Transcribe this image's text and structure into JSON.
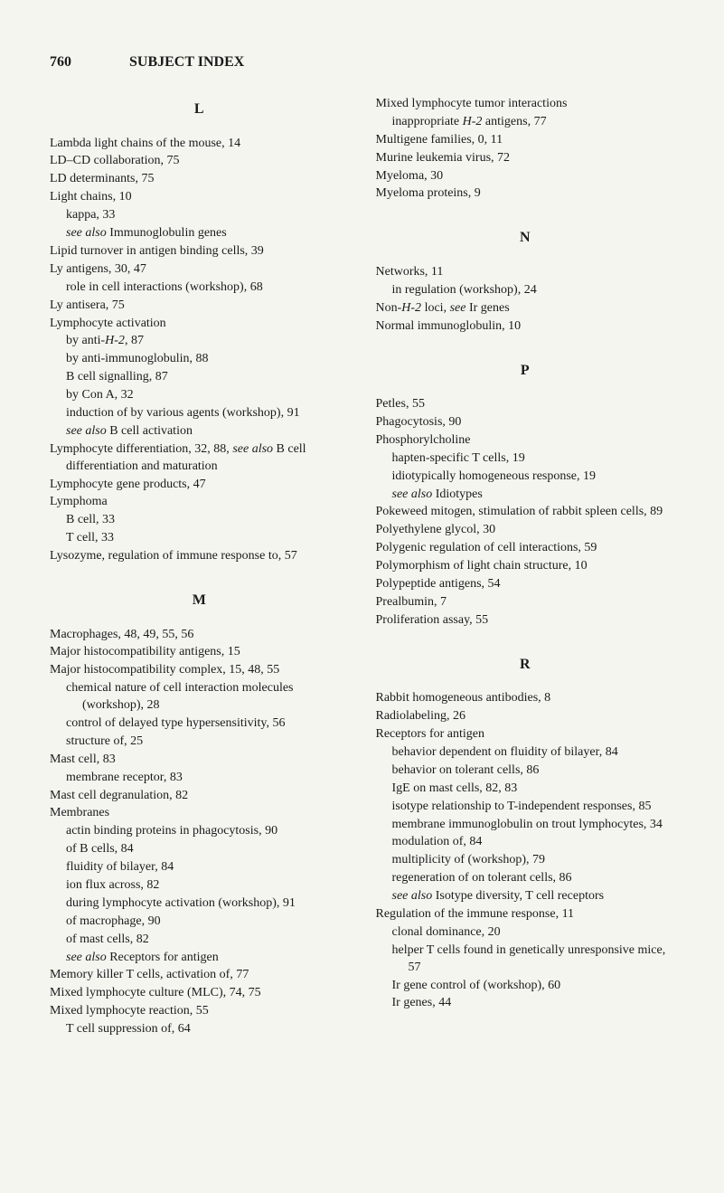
{
  "page_number": "760",
  "header_title": "SUBJECT INDEX",
  "column_left": {
    "sections": [
      {
        "letter": "L",
        "entries": [
          {
            "t": "Lambda light chains of the mouse, 14"
          },
          {
            "t": "LD–CD collaboration, 75"
          },
          {
            "t": "LD determinants, 75"
          },
          {
            "t": "Light chains, 10"
          },
          {
            "t": "kappa, 33",
            "lvl": 1
          },
          {
            "html": "<em>see also</em> Immunoglobulin genes",
            "lvl": 1
          },
          {
            "t": "Lipid turnover in antigen binding cells, 39"
          },
          {
            "t": "Ly antigens, 30, 47"
          },
          {
            "t": "role in cell interactions (workshop), 68",
            "lvl": 1
          },
          {
            "t": "Ly antisera, 75"
          },
          {
            "t": "Lymphocyte activation"
          },
          {
            "html": "by anti-<em>H-2</em>, 87",
            "lvl": 1
          },
          {
            "t": "by anti-immunoglobulin, 88",
            "lvl": 1
          },
          {
            "t": "B cell signalling, 87",
            "lvl": 1
          },
          {
            "t": "by Con A, 32",
            "lvl": 1
          },
          {
            "t": "induction of by various agents (workshop), 91",
            "lvl": 1
          },
          {
            "html": "<em>see also</em> B cell activation",
            "lvl": 1
          },
          {
            "html": "Lymphocyte differentiation, 32, 88, <em>see also</em> B cell differentiation and maturation"
          },
          {
            "t": "Lymphocyte gene products, 47"
          },
          {
            "t": "Lymphoma"
          },
          {
            "t": "B cell, 33",
            "lvl": 1
          },
          {
            "t": "T cell, 33",
            "lvl": 1
          },
          {
            "t": "Lysozyme, regulation of immune response to, 57"
          }
        ]
      },
      {
        "letter": "M",
        "entries": [
          {
            "t": "Macrophages, 48, 49, 55, 56"
          },
          {
            "t": "Major histocompatibility antigens, 15"
          },
          {
            "t": "Major histocompatibility complex, 15, 48, 55"
          },
          {
            "t": "chemical nature of cell interaction molecules (workshop), 28",
            "lvl": 1
          },
          {
            "t": "control of delayed type hypersensitivity, 56",
            "lvl": 1
          },
          {
            "t": "structure of, 25",
            "lvl": 1
          },
          {
            "t": "Mast cell, 83"
          },
          {
            "t": "membrane receptor, 83",
            "lvl": 1
          },
          {
            "t": "Mast cell degranulation, 82"
          },
          {
            "t": "Membranes"
          },
          {
            "t": "actin binding proteins in phagocytosis, 90",
            "lvl": 1
          },
          {
            "t": "of B cells, 84",
            "lvl": 1
          },
          {
            "t": "fluidity of bilayer, 84",
            "lvl": 1
          },
          {
            "t": "ion flux across, 82",
            "lvl": 1
          },
          {
            "t": "during lymphocyte activation (workshop), 91",
            "lvl": 1
          },
          {
            "t": "of macrophage, 90",
            "lvl": 1
          },
          {
            "t": "of mast cells, 82",
            "lvl": 1
          },
          {
            "html": "<em>see also</em> Receptors for antigen",
            "lvl": 1
          },
          {
            "t": "Memory killer T cells, activation of, 77"
          },
          {
            "t": "Mixed lymphocyte culture (MLC), 74, 75"
          },
          {
            "t": "Mixed lymphocyte reaction, 55"
          },
          {
            "t": "T cell suppression of, 64",
            "lvl": 1
          }
        ]
      }
    ]
  },
  "column_right": {
    "pre_entries": [
      {
        "t": "Mixed lymphocyte tumor interactions"
      },
      {
        "html": "inappropriate <em>H-2</em> antigens, 77",
        "lvl": 1
      },
      {
        "t": "Multigene families, 0, 11"
      },
      {
        "t": "Murine leukemia virus, 72"
      },
      {
        "t": "Myeloma, 30"
      },
      {
        "t": "Myeloma proteins, 9"
      }
    ],
    "sections": [
      {
        "letter": "N",
        "entries": [
          {
            "t": "Networks, 11"
          },
          {
            "t": "in regulation (workshop), 24",
            "lvl": 1
          },
          {
            "html": "Non-<em>H-2</em> loci, <em>see</em> Ir genes"
          },
          {
            "t": "Normal immunoglobulin, 10"
          }
        ]
      },
      {
        "letter": "P",
        "entries": [
          {
            "t": "Petles, 55"
          },
          {
            "t": "Phagocytosis, 90"
          },
          {
            "t": "Phosphorylcholine"
          },
          {
            "t": "hapten-specific T cells, 19",
            "lvl": 1
          },
          {
            "t": "idiotypically homogeneous response, 19",
            "lvl": 1
          },
          {
            "html": "<em>see also</em> Idiotypes",
            "lvl": 1
          },
          {
            "t": "Pokeweed mitogen, stimulation of rabbit spleen cells, 89"
          },
          {
            "t": "Polyethylene glycol, 30"
          },
          {
            "t": "Polygenic regulation of cell interactions, 59"
          },
          {
            "t": "Polymorphism of light chain structure, 10"
          },
          {
            "t": "Polypeptide antigens, 54"
          },
          {
            "t": "Prealbumin, 7"
          },
          {
            "t": "Proliferation assay, 55"
          }
        ]
      },
      {
        "letter": "R",
        "entries": [
          {
            "t": "Rabbit homogeneous antibodies, 8"
          },
          {
            "t": "Radiolabeling, 26"
          },
          {
            "t": "Receptors for antigen"
          },
          {
            "t": "behavior dependent on fluidity of bilayer, 84",
            "lvl": 1
          },
          {
            "t": "behavior on tolerant cells, 86",
            "lvl": 1
          },
          {
            "t": "IgE on mast cells, 82, 83",
            "lvl": 1
          },
          {
            "t": "isotype relationship to T-independent responses, 85",
            "lvl": 1
          },
          {
            "t": "membrane immunoglobulin on trout lymphocytes, 34",
            "lvl": 1
          },
          {
            "t": "modulation of, 84",
            "lvl": 1
          },
          {
            "t": "multiplicity of (workshop), 79",
            "lvl": 1
          },
          {
            "t": "regeneration of on tolerant cells, 86",
            "lvl": 1
          },
          {
            "html": "<em>see also</em> Isotype diversity, T cell receptors",
            "lvl": 1
          },
          {
            "t": "Regulation of the immune response, 11"
          },
          {
            "t": "clonal dominance, 20",
            "lvl": 1
          },
          {
            "t": "helper T cells found in genetically unresponsive mice, 57",
            "lvl": 1
          },
          {
            "t": "Ir gene control of (workshop), 60",
            "lvl": 1
          },
          {
            "t": "Ir genes, 44",
            "lvl": 1
          }
        ]
      }
    ]
  }
}
